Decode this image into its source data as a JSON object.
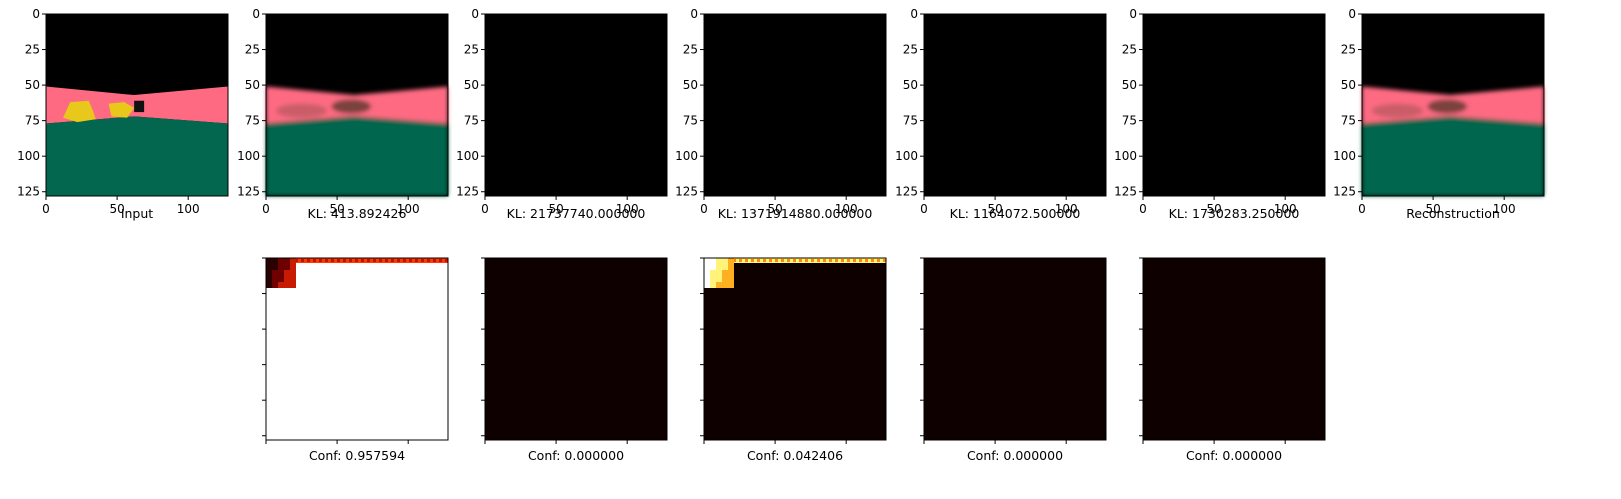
{
  "chart_data": {
    "type": "image-grid",
    "image_axis": {
      "xlim": [
        0,
        128
      ],
      "ylim": [
        128,
        0
      ],
      "xticks": [
        0,
        50,
        100
      ],
      "yticks": [
        0,
        25,
        50,
        75,
        100,
        125
      ],
      "xtick_labels": [
        "0",
        "50",
        "100"
      ],
      "ytick_labels": [
        "0",
        "25",
        "50",
        "75",
        "100",
        "125"
      ]
    },
    "top_row": [
      {
        "caption": "Input",
        "content": "scene"
      },
      {
        "caption": "KL: 413.892426",
        "content": "blurry-scene"
      },
      {
        "caption": "KL: 21737740.000000",
        "content": "black"
      },
      {
        "caption": "KL: 1371914880.000000",
        "content": "black"
      },
      {
        "caption": "KL: 1164072.500000",
        "content": "black"
      },
      {
        "caption": "KL: 1730283.250000",
        "content": "black"
      },
      {
        "caption": "Reconstruction",
        "content": "blurry-scene"
      }
    ],
    "bottom_row": [
      {
        "caption": "Conf: 0.957594",
        "content": "heatmap-dark-corner",
        "conf": 0.957594
      },
      {
        "caption": "Conf: 0.000000",
        "content": "heatmap-empty",
        "conf": 0.0
      },
      {
        "caption": "Conf: 0.042406",
        "content": "heatmap-bright-corner",
        "conf": 0.042406
      },
      {
        "caption": "Conf: 0.000000",
        "content": "heatmap-empty",
        "conf": 0.0
      },
      {
        "caption": "Conf: 0.000000",
        "content": "heatmap-empty",
        "conf": 0.0
      }
    ],
    "colors": {
      "sky": "#000000",
      "road": "#fd6a82",
      "ground": "#03664e",
      "cars": "#e8c81a",
      "heat_bg": "#0f0000",
      "heat_hot": "#ffffff",
      "heat_mid": "#ff3a00",
      "heat_yellow": "#fff37a",
      "heat_dark": "#6e0000"
    }
  }
}
